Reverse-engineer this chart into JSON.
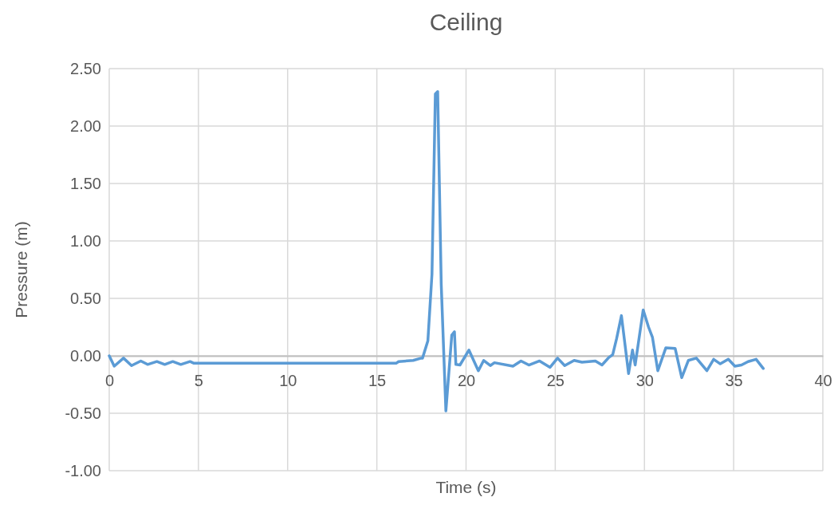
{
  "chart_data": {
    "type": "line",
    "title": "Ceiling",
    "xlabel": "Time (s)",
    "ylabel": "Pressure (m)",
    "xlim": [
      0,
      40
    ],
    "xticks": [
      0,
      5,
      10,
      15,
      20,
      25,
      30,
      35,
      40
    ],
    "ylim": [
      -1,
      2.5
    ],
    "yticks": [
      {
        "value": -1,
        "label": "-1.00"
      },
      {
        "value": -0.5,
        "label": "-0.50"
      },
      {
        "value": 0,
        "label": "0.00"
      },
      {
        "value": 0.5,
        "label": "0.50"
      },
      {
        "value": 1,
        "label": "1.00"
      },
      {
        "value": 1.5,
        "label": "1.50"
      },
      {
        "value": 2,
        "label": "2.00"
      },
      {
        "value": 2.5,
        "label": "2.50"
      }
    ],
    "grid": true,
    "marker": "none",
    "line_style": "solid",
    "series": [
      {
        "color": "#5b9bd5",
        "x": [
          0,
          0.28,
          0.8,
          1.25,
          1.77,
          2.15,
          2.67,
          3.11,
          3.56,
          4.01,
          4.53,
          4.75,
          16.08,
          16.22,
          17.04,
          17.49,
          17.56,
          17.86,
          18.09,
          18.28,
          18.41,
          18.61,
          18.87,
          19.2,
          19.35,
          19.43,
          19.66,
          20.16,
          20.69,
          20.99,
          21.36,
          21.59,
          22.63,
          23.08,
          23.52,
          24.12,
          24.71,
          25.13,
          25.53,
          26.06,
          26.5,
          27.25,
          27.62,
          28.0,
          28.22,
          28.44,
          28.71,
          29.11,
          29.33,
          29.48,
          29.93,
          30.23,
          30.45,
          30.75,
          31.2,
          31.72,
          32.09,
          32.46,
          32.91,
          33.5,
          33.88,
          34.25,
          34.7,
          35.07,
          35.44,
          35.81,
          36.26,
          36.66
        ],
        "values": [
          0,
          -0.09,
          -0.02,
          -0.085,
          -0.045,
          -0.075,
          -0.05,
          -0.075,
          -0.05,
          -0.075,
          -0.05,
          -0.065,
          -0.065,
          -0.05,
          -0.04,
          -0.02,
          -0.02,
          0.13,
          0.71,
          2.28,
          2.3,
          0.62,
          -0.48,
          0.18,
          0.21,
          -0.075,
          -0.08,
          0.05,
          -0.13,
          -0.04,
          -0.085,
          -0.06,
          -0.09,
          -0.045,
          -0.08,
          -0.045,
          -0.1,
          -0.02,
          -0.085,
          -0.04,
          -0.055,
          -0.045,
          -0.08,
          -0.015,
          0.01,
          0.15,
          0.35,
          -0.155,
          0.05,
          -0.08,
          0.4,
          0.25,
          0.16,
          -0.13,
          0.07,
          0.065,
          -0.19,
          -0.04,
          -0.02,
          -0.13,
          -0.03,
          -0.07,
          -0.03,
          -0.09,
          -0.08,
          -0.05,
          -0.03,
          -0.11
        ]
      }
    ]
  }
}
